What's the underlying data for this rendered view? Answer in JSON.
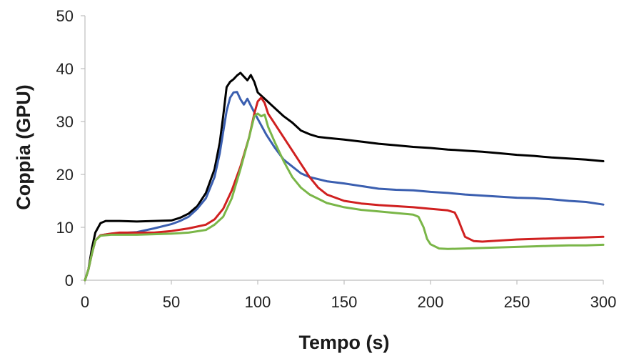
{
  "chart_data": {
    "type": "line",
    "title": "",
    "xlabel": "Tempo (s)",
    "ylabel": "Coppia (GPU)",
    "xlim": [
      0,
      300
    ],
    "ylim": [
      0,
      50
    ],
    "xticks": [
      0,
      50,
      100,
      150,
      200,
      250,
      300
    ],
    "yticks": [
      0,
      10,
      20,
      30,
      40,
      50
    ],
    "grid": false,
    "legend": "none",
    "series": [
      {
        "name": "black",
        "color": "#000000",
        "points": [
          [
            0,
            0
          ],
          [
            2,
            2
          ],
          [
            4,
            6
          ],
          [
            6,
            9
          ],
          [
            9,
            10.8
          ],
          [
            12,
            11.2
          ],
          [
            20,
            11.2
          ],
          [
            30,
            11.1
          ],
          [
            40,
            11.2
          ],
          [
            50,
            11.3
          ],
          [
            55,
            11.8
          ],
          [
            60,
            12.6
          ],
          [
            65,
            14
          ],
          [
            70,
            16.5
          ],
          [
            75,
            21
          ],
          [
            78,
            26
          ],
          [
            80,
            31
          ],
          [
            82,
            36.5
          ],
          [
            84,
            37.5
          ],
          [
            86,
            38
          ],
          [
            88,
            38.7
          ],
          [
            90,
            39.2
          ],
          [
            92,
            38.5
          ],
          [
            94,
            37.8
          ],
          [
            96,
            38.8
          ],
          [
            98,
            37.5
          ],
          [
            100,
            35.5
          ],
          [
            105,
            34
          ],
          [
            110,
            32.5
          ],
          [
            115,
            31
          ],
          [
            120,
            29.8
          ],
          [
            125,
            28.3
          ],
          [
            130,
            27.6
          ],
          [
            135,
            27.1
          ],
          [
            140,
            26.9
          ],
          [
            150,
            26.6
          ],
          [
            160,
            26.2
          ],
          [
            170,
            25.8
          ],
          [
            180,
            25.5
          ],
          [
            190,
            25.2
          ],
          [
            200,
            25
          ],
          [
            210,
            24.7
          ],
          [
            220,
            24.5
          ],
          [
            230,
            24.3
          ],
          [
            240,
            24
          ],
          [
            250,
            23.7
          ],
          [
            260,
            23.5
          ],
          [
            270,
            23.2
          ],
          [
            280,
            23
          ],
          [
            290,
            22.8
          ],
          [
            300,
            22.5
          ]
        ]
      },
      {
        "name": "blue",
        "color": "#3b5fb0",
        "points": [
          [
            0,
            0
          ],
          [
            2,
            2
          ],
          [
            4,
            5
          ],
          [
            6,
            7.5
          ],
          [
            9,
            8.5
          ],
          [
            15,
            8.8
          ],
          [
            20,
            8.9
          ],
          [
            30,
            9.1
          ],
          [
            40,
            9.8
          ],
          [
            50,
            10.6
          ],
          [
            55,
            11.2
          ],
          [
            60,
            12
          ],
          [
            65,
            13.5
          ],
          [
            70,
            15.5
          ],
          [
            75,
            19.5
          ],
          [
            78,
            24
          ],
          [
            80,
            28
          ],
          [
            82,
            32
          ],
          [
            84,
            34.5
          ],
          [
            86,
            35.5
          ],
          [
            88,
            35.6
          ],
          [
            90,
            34.2
          ],
          [
            92,
            33.2
          ],
          [
            94,
            34.3
          ],
          [
            96,
            33
          ],
          [
            100,
            30.5
          ],
          [
            105,
            27.5
          ],
          [
            110,
            25
          ],
          [
            115,
            22.8
          ],
          [
            120,
            21.5
          ],
          [
            125,
            20.2
          ],
          [
            130,
            19.5
          ],
          [
            140,
            18.7
          ],
          [
            150,
            18.3
          ],
          [
            160,
            17.8
          ],
          [
            170,
            17.3
          ],
          [
            180,
            17.1
          ],
          [
            190,
            17
          ],
          [
            200,
            16.7
          ],
          [
            210,
            16.5
          ],
          [
            220,
            16.2
          ],
          [
            230,
            16
          ],
          [
            240,
            15.8
          ],
          [
            250,
            15.6
          ],
          [
            260,
            15.5
          ],
          [
            270,
            15.3
          ],
          [
            280,
            15
          ],
          [
            290,
            14.8
          ],
          [
            300,
            14.3
          ]
        ]
      },
      {
        "name": "red",
        "color": "#d02020",
        "points": [
          [
            0,
            0
          ],
          [
            2,
            2
          ],
          [
            4,
            5
          ],
          [
            6,
            7.5
          ],
          [
            9,
            8.5
          ],
          [
            15,
            8.8
          ],
          [
            20,
            9
          ],
          [
            30,
            9
          ],
          [
            40,
            9
          ],
          [
            50,
            9.3
          ],
          [
            60,
            9.8
          ],
          [
            70,
            10.5
          ],
          [
            75,
            11.5
          ],
          [
            80,
            13.5
          ],
          [
            85,
            17
          ],
          [
            90,
            21.5
          ],
          [
            95,
            27
          ],
          [
            98,
            31.5
          ],
          [
            100,
            33.8
          ],
          [
            102,
            34.5
          ],
          [
            104,
            33.5
          ],
          [
            106,
            31.5
          ],
          [
            110,
            29.5
          ],
          [
            115,
            27
          ],
          [
            120,
            24.5
          ],
          [
            125,
            22
          ],
          [
            130,
            19.5
          ],
          [
            135,
            17.5
          ],
          [
            140,
            16.2
          ],
          [
            150,
            15
          ],
          [
            160,
            14.5
          ],
          [
            170,
            14.2
          ],
          [
            180,
            14
          ],
          [
            190,
            13.8
          ],
          [
            200,
            13.5
          ],
          [
            210,
            13.2
          ],
          [
            214,
            12.8
          ],
          [
            216,
            11.5
          ],
          [
            218,
            9.8
          ],
          [
            220,
            8.2
          ],
          [
            225,
            7.4
          ],
          [
            230,
            7.3
          ],
          [
            240,
            7.5
          ],
          [
            250,
            7.7
          ],
          [
            260,
            7.8
          ],
          [
            270,
            7.9
          ],
          [
            280,
            8
          ],
          [
            290,
            8.1
          ],
          [
            300,
            8.2
          ]
        ]
      },
      {
        "name": "green",
        "color": "#7ab648",
        "points": [
          [
            0,
            0
          ],
          [
            2,
            2
          ],
          [
            4,
            5
          ],
          [
            6,
            7.5
          ],
          [
            9,
            8.4
          ],
          [
            15,
            8.6
          ],
          [
            20,
            8.6
          ],
          [
            30,
            8.6
          ],
          [
            40,
            8.7
          ],
          [
            50,
            8.8
          ],
          [
            60,
            9
          ],
          [
            70,
            9.5
          ],
          [
            75,
            10.5
          ],
          [
            80,
            12
          ],
          [
            85,
            15.5
          ],
          [
            90,
            21
          ],
          [
            95,
            27
          ],
          [
            98,
            31
          ],
          [
            100,
            31.5
          ],
          [
            102,
            31
          ],
          [
            104,
            31.3
          ],
          [
            106,
            29
          ],
          [
            110,
            26
          ],
          [
            115,
            22.5
          ],
          [
            120,
            19.5
          ],
          [
            125,
            17.5
          ],
          [
            130,
            16.2
          ],
          [
            140,
            14.6
          ],
          [
            150,
            13.8
          ],
          [
            160,
            13.3
          ],
          [
            170,
            13
          ],
          [
            180,
            12.7
          ],
          [
            190,
            12.4
          ],
          [
            193,
            12
          ],
          [
            196,
            10
          ],
          [
            198,
            7.8
          ],
          [
            200,
            6.8
          ],
          [
            205,
            6
          ],
          [
            210,
            5.9
          ],
          [
            220,
            6
          ],
          [
            230,
            6.1
          ],
          [
            240,
            6.2
          ],
          [
            250,
            6.3
          ],
          [
            260,
            6.4
          ],
          [
            270,
            6.5
          ],
          [
            280,
            6.6
          ],
          [
            290,
            6.6
          ],
          [
            300,
            6.7
          ]
        ]
      }
    ]
  }
}
